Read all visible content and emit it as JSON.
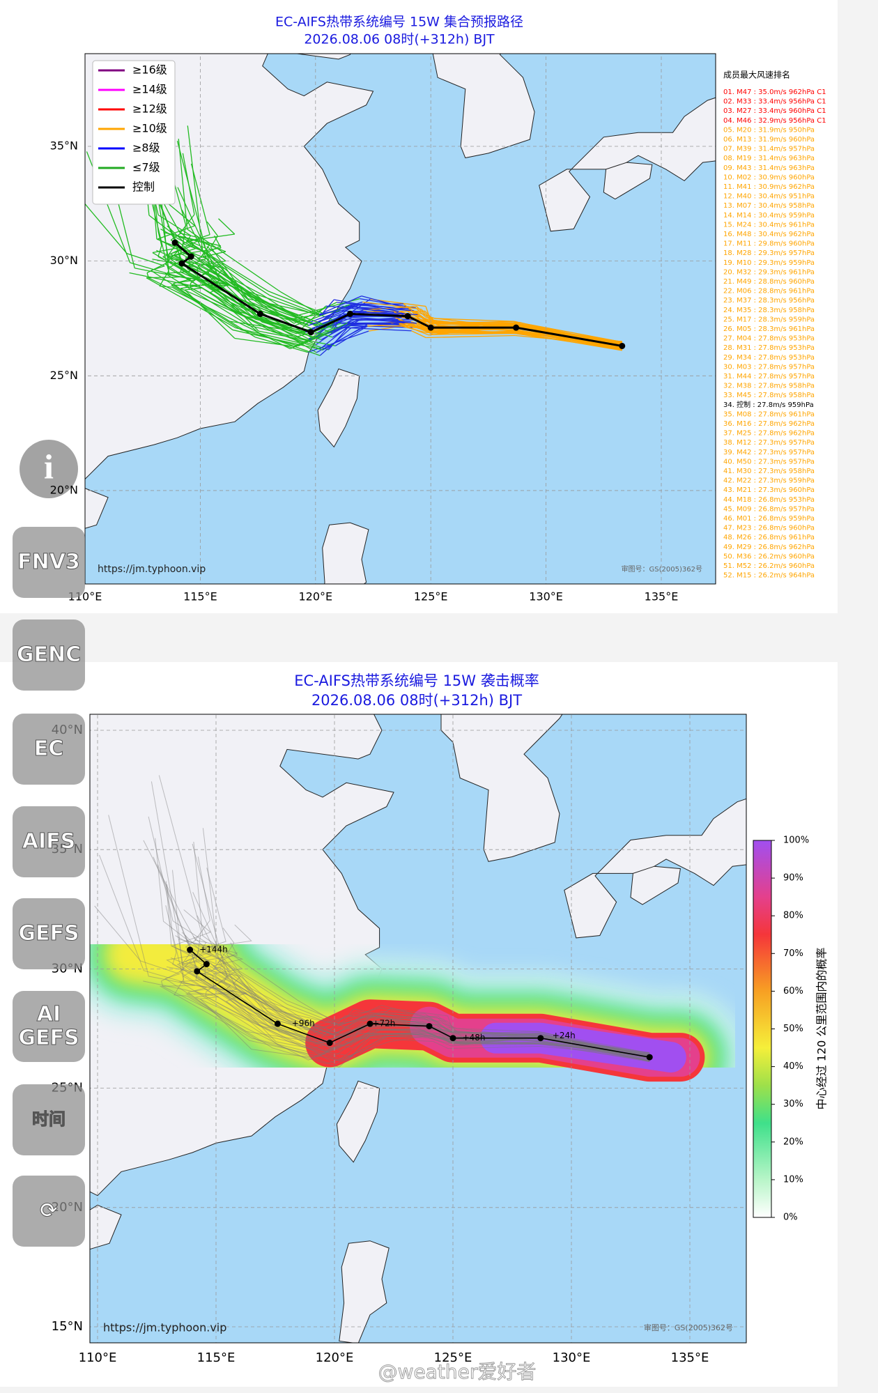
{
  "top_panel": {
    "title": "EC-AIFS热带系统编号 15W 集合预报路径",
    "subtitle": "2026.08.06 08时(+312h) BJT",
    "legend": [
      {
        "label": "≥16级",
        "color": "#800080"
      },
      {
        "label": "≥14级",
        "color": "#ff00ff"
      },
      {
        "label": "≥12级",
        "color": "#ff0000"
      },
      {
        "label": "≥10级",
        "color": "#ffa500"
      },
      {
        "label": "≥8级",
        "color": "#0000ff"
      },
      {
        "label": "≤7级",
        "color": "#22aa22"
      },
      {
        "label": "控制",
        "color": "#000000"
      }
    ],
    "ranking": {
      "title": "成员最大风速排名",
      "items": [
        {
          "text": "01. M47 : 35.0m/s 962hPa C1",
          "color": "#ff0000"
        },
        {
          "text": "02. M33 : 33.4m/s 956hPa C1",
          "color": "#ff0000"
        },
        {
          "text": "03. M27 : 33.4m/s 960hPa C1",
          "color": "#ff0000"
        },
        {
          "text": "04. M46 : 32.9m/s 956hPa C1",
          "color": "#ff0000"
        },
        {
          "text": "05. M20 : 31.9m/s 950hPa",
          "color": "#ffa500"
        },
        {
          "text": "06. M13 : 31.9m/s 960hPa",
          "color": "#ffa500"
        },
        {
          "text": "07. M39 : 31.4m/s 957hPa",
          "color": "#ffa500"
        },
        {
          "text": "08. M19 : 31.4m/s 963hPa",
          "color": "#ffa500"
        },
        {
          "text": "09. M43 : 31.4m/s 963hPa",
          "color": "#ffa500"
        },
        {
          "text": "10. M02 : 30.9m/s 960hPa",
          "color": "#ffa500"
        },
        {
          "text": "11. M41 : 30.9m/s 962hPa",
          "color": "#ffa500"
        },
        {
          "text": "12. M40 : 30.4m/s 951hPa",
          "color": "#ffa500"
        },
        {
          "text": "13. M07 : 30.4m/s 958hPa",
          "color": "#ffa500"
        },
        {
          "text": "14. M14 : 30.4m/s 959hPa",
          "color": "#ffa500"
        },
        {
          "text": "15. M24 : 30.4m/s 961hPa",
          "color": "#ffa500"
        },
        {
          "text": "16. M48 : 30.4m/s 962hPa",
          "color": "#ffa500"
        },
        {
          "text": "17. M11 : 29.8m/s 960hPa",
          "color": "#ffa500"
        },
        {
          "text": "18. M28 : 29.3m/s 957hPa",
          "color": "#ffa500"
        },
        {
          "text": "19. M10 : 29.3m/s 959hPa",
          "color": "#ffa500"
        },
        {
          "text": "20. M32 : 29.3m/s 961hPa",
          "color": "#ffa500"
        },
        {
          "text": "21. M49 : 28.8m/s 960hPa",
          "color": "#ffa500"
        },
        {
          "text": "22. M06 : 28.8m/s 961hPa",
          "color": "#ffa500"
        },
        {
          "text": "23. M37 : 28.3m/s 956hPa",
          "color": "#ffa500"
        },
        {
          "text": "24. M35 : 28.3m/s 958hPa",
          "color": "#ffa500"
        },
        {
          "text": "25. M17 : 28.3m/s 959hPa",
          "color": "#ffa500"
        },
        {
          "text": "26. M05 : 28.3m/s 961hPa",
          "color": "#ffa500"
        },
        {
          "text": "27. M04 : 27.8m/s 953hPa",
          "color": "#ffa500"
        },
        {
          "text": "28. M31 : 27.8m/s 953hPa",
          "color": "#ffa500"
        },
        {
          "text": "29. M34 : 27.8m/s 953hPa",
          "color": "#ffa500"
        },
        {
          "text": "30. M03 : 27.8m/s 957hPa",
          "color": "#ffa500"
        },
        {
          "text": "31. M44 : 27.8m/s 957hPa",
          "color": "#ffa500"
        },
        {
          "text": "32. M38 : 27.8m/s 958hPa",
          "color": "#ffa500"
        },
        {
          "text": "33. M45 : 27.8m/s 958hPa",
          "color": "#ffa500"
        },
        {
          "text": "34. 控制 : 27.8m/s 959hPa",
          "color": "#000000"
        },
        {
          "text": "35. M08 : 27.8m/s 961hPa",
          "color": "#ffa500"
        },
        {
          "text": "36. M16 : 27.8m/s 962hPa",
          "color": "#ffa500"
        },
        {
          "text": "37. M25 : 27.8m/s 962hPa",
          "color": "#ffa500"
        },
        {
          "text": "38. M12 : 27.3m/s 957hPa",
          "color": "#ffa500"
        },
        {
          "text": "39. M42 : 27.3m/s 957hPa",
          "color": "#ffa500"
        },
        {
          "text": "40. M50 : 27.3m/s 957hPa",
          "color": "#ffa500"
        },
        {
          "text": "41. M30 : 27.3m/s 958hPa",
          "color": "#ffa500"
        },
        {
          "text": "42. M22 : 27.3m/s 959hPa",
          "color": "#ffa500"
        },
        {
          "text": "43. M21 : 27.3m/s 960hPa",
          "color": "#ffa500"
        },
        {
          "text": "44. M18 : 26.8m/s 953hPa",
          "color": "#ffa500"
        },
        {
          "text": "45. M09 : 26.8m/s 957hPa",
          "color": "#ffa500"
        },
        {
          "text": "46. M01 : 26.8m/s 959hPa",
          "color": "#ffa500"
        },
        {
          "text": "47. M23 : 26.8m/s 960hPa",
          "color": "#ffa500"
        },
        {
          "text": "48. M26 : 26.8m/s 961hPa",
          "color": "#ffa500"
        },
        {
          "text": "49. M29 : 26.8m/s 962hPa",
          "color": "#ffa500"
        },
        {
          "text": "50. M36 : 26.2m/s 960hPa",
          "color": "#ffa500"
        },
        {
          "text": "51. M52 : 26.2m/s 960hPa",
          "color": "#ffa500"
        },
        {
          "text": "52. M15 : 26.2m/s 964hPa",
          "color": "#ffa500"
        }
      ]
    },
    "x_labels": [
      "110°E",
      "115°E",
      "120°E",
      "125°E",
      "130°E",
      "135°E"
    ],
    "y_labels": [
      "35°N",
      "30°N",
      "25°N",
      "20°N"
    ],
    "source": "https://jm.typhoon.vip",
    "license": "审图号：GS(2005)362号"
  },
  "bottom_panel": {
    "title": "EC-AIFS热带系统编号 15W 袭击概率",
    "subtitle": "2026.08.06 08时(+312h) BJT",
    "x_labels": [
      "110°E",
      "115°E",
      "120°E",
      "125°E",
      "130°E",
      "135°E"
    ],
    "y_labels": [
      "40°N",
      "35°N",
      "30°N",
      "25°N",
      "20°N",
      "15°N"
    ],
    "track_labels": [
      "+144h",
      "+96h",
      "+72h",
      "+48h",
      "+24h"
    ],
    "colorbar": {
      "label": "中心经过 120 公里范围内的概率",
      "ticks": [
        "0%",
        "10%",
        "20%",
        "30%",
        "40%",
        "50%",
        "60%",
        "70%",
        "80%",
        "90%",
        "100%"
      ]
    },
    "source": "https://jm.typhoon.vip",
    "license": "审图号：GS(2005)362号"
  },
  "sidebar": {
    "buttons": [
      "FNV3",
      "GENC",
      "EC",
      "AIFS",
      "GEFS",
      "AI GEFS",
      "时间"
    ]
  },
  "watermark": "@weather爱好者"
}
